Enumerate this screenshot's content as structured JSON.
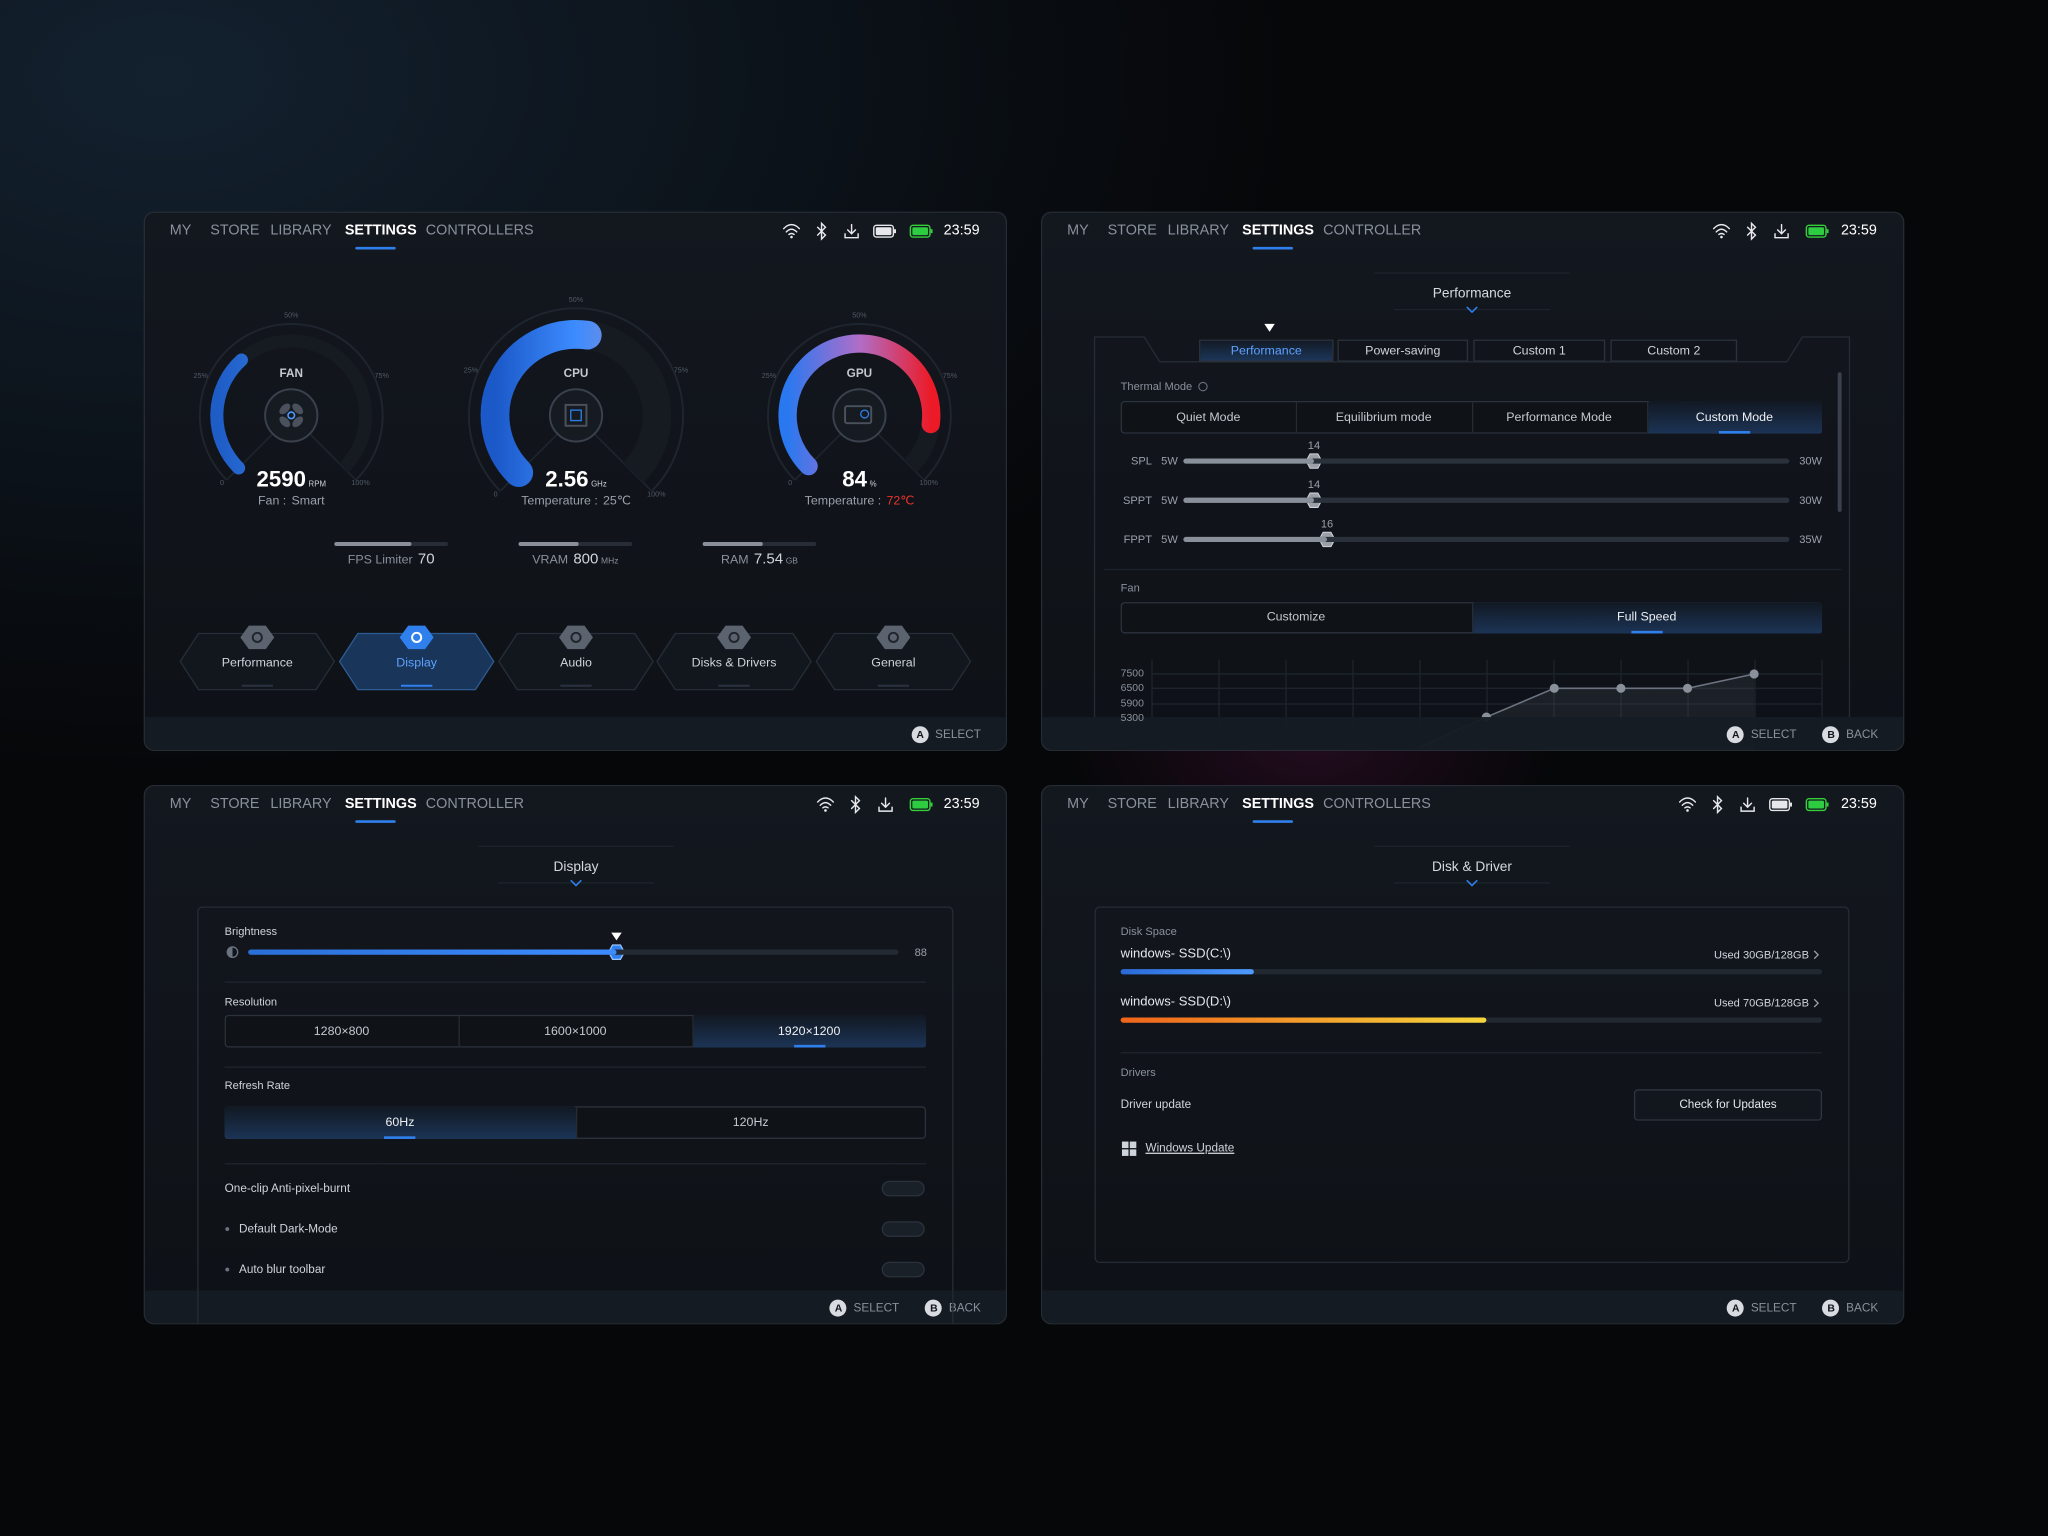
{
  "panels": [
    {
      "nav": [
        "MY",
        "STORE",
        "LIBRARY",
        "SETTINGS",
        "CONTROLLERS"
      ],
      "time": "23:59",
      "gauges": [
        {
          "label": "FAN",
          "value": "2590",
          "unit": "RPM",
          "caption": "Fan :",
          "status": "Smart",
          "scale": [
            "0",
            "25%",
            "50%",
            "75%",
            "100%"
          ]
        },
        {
          "label": "CPU",
          "value": "2.56",
          "unit": "GHz",
          "caption": "Temperature :",
          "status": "25℃",
          "scale": [
            "0",
            "25%",
            "50%",
            "75%",
            "100%"
          ]
        },
        {
          "label": "GPU",
          "value": "84",
          "unit": "%",
          "caption": "Temperature :",
          "status": "72℃",
          "scale": [
            "0",
            "25%",
            "50%",
            "75%",
            "100%"
          ]
        }
      ],
      "stats": [
        {
          "label": "FPS Limiter",
          "value": "70"
        },
        {
          "label": "VRAM",
          "value": "800",
          "unit": "MHz"
        },
        {
          "label": "RAM",
          "value": "7.54",
          "unit": "GB"
        }
      ],
      "menu": [
        "Performance",
        "Display",
        "Audio",
        "Disks & Drivers",
        "General"
      ],
      "footer": [
        {
          "key": "A",
          "action": "SELECT"
        }
      ]
    },
    {
      "nav": [
        "MY",
        "STORE",
        "LIBRARY",
        "SETTINGS",
        "CONTROLLER"
      ],
      "time": "23:59",
      "heading": "Performance",
      "tabs": [
        "Performance",
        "Power-saving",
        "Custom 1",
        "Custom 2"
      ],
      "thermal_label": "Thermal Mode",
      "modes": [
        "Quiet Mode",
        "Equilibrium mode",
        "Performance Mode",
        "Custom Mode"
      ],
      "sliders": [
        {
          "name": "SPL",
          "min": "5W",
          "value": "14",
          "max": "30W"
        },
        {
          "name": "SPPT",
          "min": "5W",
          "value": "14",
          "max": "30W"
        },
        {
          "name": "FPPT",
          "min": "5W",
          "value": "16",
          "max": "35W"
        }
      ],
      "fan_label": "Fan",
      "fan_modes": [
        "Customize",
        "Full Speed"
      ],
      "fan_ticks": [
        "7500",
        "6500",
        "5900",
        "5300"
      ],
      "footer": [
        {
          "key": "A",
          "action": "SELECT"
        },
        {
          "key": "B",
          "action": "BACK"
        }
      ]
    },
    {
      "nav": [
        "MY",
        "STORE",
        "LIBRARY",
        "SETTINGS",
        "CONTROLLER"
      ],
      "time": "23:59",
      "heading": "Display",
      "brightness": {
        "label": "Brightness",
        "value": "88"
      },
      "resolution_label": "Resolution",
      "resolutions": [
        "1280×800",
        "1600×1000",
        "1920×1200"
      ],
      "refresh_label": "Refresh Rate",
      "refresh_rates": [
        "60Hz",
        "120Hz"
      ],
      "toggles": [
        "One-clip Anti-pixel-burnt",
        "Default Dark-Mode",
        "Auto blur toolbar"
      ],
      "footer": [
        {
          "key": "A",
          "action": "SELECT"
        },
        {
          "key": "B",
          "action": "BACK"
        }
      ]
    },
    {
      "nav": [
        "MY",
        "STORE",
        "LIBRARY",
        "SETTINGS",
        "CONTROLLERS"
      ],
      "time": "23:59",
      "heading": "Disk & Driver",
      "disk_label": "Disk Space",
      "disks": [
        {
          "name": "windows- SSD(C:\\)",
          "usage": "Used 30GB/128GB"
        },
        {
          "name": "windows- SSD(D:\\)",
          "usage": "Used 70GB/128GB"
        }
      ],
      "drivers_label": "Drivers",
      "driver_update": "Driver update",
      "check_button": "Check for Updates",
      "windows_update": "Windows Update",
      "footer": [
        {
          "key": "A",
          "action": "SELECT"
        },
        {
          "key": "B",
          "action": "BACK"
        }
      ]
    }
  ]
}
